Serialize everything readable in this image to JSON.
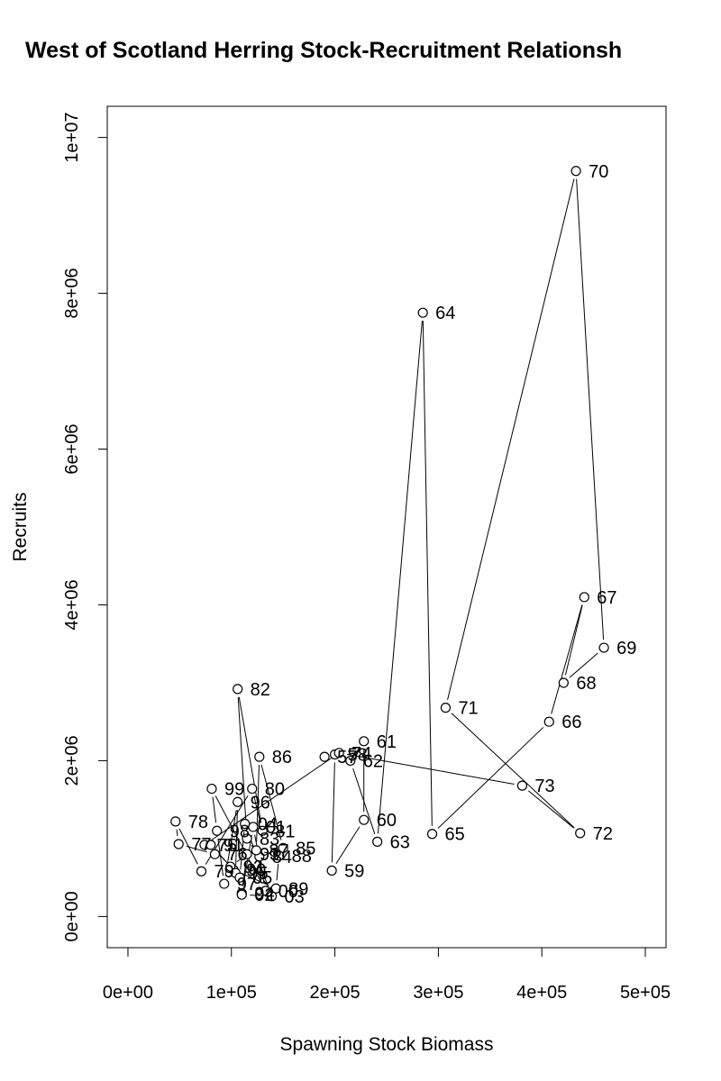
{
  "chart_data": {
    "type": "scatter",
    "title": "West of Scotland Herring Stock-Recruitment Relationsh",
    "xlabel": "Spawning Stock Biomass",
    "ylabel": "Recruits",
    "xlim": [
      -20000,
      520000
    ],
    "ylim": [
      -400000,
      10400000
    ],
    "x_ticks": [
      0,
      100000,
      200000,
      300000,
      400000,
      500000
    ],
    "x_tick_labels": [
      "0e+00",
      "1e+05",
      "2e+05",
      "3e+05",
      "4e+05",
      "5e+05"
    ],
    "y_ticks": [
      0,
      2000000,
      4000000,
      6000000,
      8000000,
      10000000
    ],
    "y_tick_labels": [
      "0e+00",
      "2e+06",
      "4e+06",
      "6e+06",
      "8e+06",
      "1e+07"
    ],
    "grid": false,
    "connected": true,
    "points": [
      {
        "label": "57",
        "x": 190000,
        "y": 2050000
      },
      {
        "label": "58",
        "x": 200000,
        "y": 2080000
      },
      {
        "label": "59",
        "x": 197000,
        "y": 590000
      },
      {
        "label": "60",
        "x": 228000,
        "y": 1240000
      },
      {
        "label": "61",
        "x": 228000,
        "y": 2250000
      },
      {
        "label": "62",
        "x": 215000,
        "y": 2000000
      },
      {
        "label": "63",
        "x": 241000,
        "y": 960000
      },
      {
        "label": "64",
        "x": 285000,
        "y": 7750000
      },
      {
        "label": "65",
        "x": 294000,
        "y": 1060000
      },
      {
        "label": "66",
        "x": 407000,
        "y": 2500000
      },
      {
        "label": "67",
        "x": 441000,
        "y": 4100000
      },
      {
        "label": "68",
        "x": 421000,
        "y": 3000000
      },
      {
        "label": "69",
        "x": 460000,
        "y": 3450000
      },
      {
        "label": "70",
        "x": 433000,
        "y": 9570000
      },
      {
        "label": "71",
        "x": 307000,
        "y": 2680000
      },
      {
        "label": "72",
        "x": 437000,
        "y": 1070000
      },
      {
        "label": "73",
        "x": 381000,
        "y": 1680000
      },
      {
        "label": "74",
        "x": 204000,
        "y": 2100000
      },
      {
        "label": "75",
        "x": 74000,
        "y": 920000
      },
      {
        "label": "76",
        "x": 84000,
        "y": 800000
      },
      {
        "label": "77",
        "x": 49000,
        "y": 930000
      },
      {
        "label": "78",
        "x": 46000,
        "y": 1220000
      },
      {
        "label": "79",
        "x": 71000,
        "y": 580000
      },
      {
        "label": "80",
        "x": 120000,
        "y": 1640000
      },
      {
        "label": "81",
        "x": 130000,
        "y": 1100000
      },
      {
        "label": "82",
        "x": 106000,
        "y": 2920000
      },
      {
        "label": "83",
        "x": 115000,
        "y": 1000000
      },
      {
        "label": "84",
        "x": 127000,
        "y": 770000
      },
      {
        "label": "85",
        "x": 150000,
        "y": 880000
      },
      {
        "label": "86",
        "x": 127000,
        "y": 2050000
      },
      {
        "label": "87",
        "x": 124000,
        "y": 850000
      },
      {
        "label": "88",
        "x": 146000,
        "y": 780000
      },
      {
        "label": "89",
        "x": 143000,
        "y": 360000
      },
      {
        "label": "90",
        "x": 102000,
        "y": 600000
      },
      {
        "label": "91",
        "x": 80000,
        "y": 920000
      },
      {
        "label": "92",
        "x": 99000,
        "y": 640000
      },
      {
        "label": "93",
        "x": 115000,
        "y": 800000
      },
      {
        "label": "94",
        "x": 110000,
        "y": 300000
      },
      {
        "label": "95",
        "x": 104000,
        "y": 560000
      },
      {
        "label": "96",
        "x": 106000,
        "y": 1470000
      },
      {
        "label": "97",
        "x": 93000,
        "y": 420000
      },
      {
        "label": "98",
        "x": 86000,
        "y": 1100000
      },
      {
        "label": "99",
        "x": 81000,
        "y": 1640000
      },
      {
        "label": "00",
        "x": 133000,
        "y": 330000
      },
      {
        "label": "01",
        "x": 121000,
        "y": 1150000
      },
      {
        "label": "02",
        "x": 110000,
        "y": 280000
      },
      {
        "label": "03",
        "x": 139000,
        "y": 260000
      },
      {
        "label": "04",
        "x": 113000,
        "y": 1190000
      },
      {
        "label": "05",
        "x": 108000,
        "y": 500000
      }
    ]
  }
}
